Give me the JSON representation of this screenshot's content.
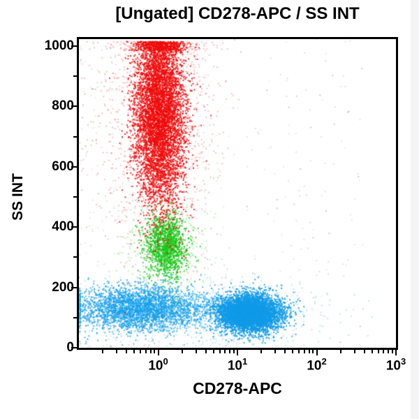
{
  "window": {
    "background": "#ffffff",
    "edge_strip_color": "#f4f4f6"
  },
  "chart_data": {
    "type": "scatter",
    "title": "[Ungated] CD278-APC / SS INT",
    "xlabel": "CD278-APC",
    "ylabel": "SS INT",
    "x_scale": "log",
    "x_decades_min": -1,
    "x_decades_max": 3,
    "x_tick_base": "10",
    "x_tick_exponents": [
      0,
      1,
      2,
      3
    ],
    "y_min": 0,
    "y_max": 1023,
    "y_ticks": [
      0,
      200,
      400,
      600,
      800,
      1000
    ],
    "y_minor_ticks": [
      100,
      300,
      500,
      700,
      900
    ],
    "axis_color": "#000000",
    "plot_background": "#ffffff",
    "grid": "off",
    "legend": "none",
    "populations": [
      {
        "name": "ungated-debris-sparse",
        "type": "sparse",
        "seed": 41,
        "n": 430,
        "alpha": 0.38,
        "x_pow": 1.6,
        "x_span": 3.6,
        "colors": [
          "#b9aca0",
          "#d4b6b6",
          "#a7b3bd",
          "#777777",
          "#d9c9a8"
        ]
      },
      {
        "name": "blue-population-halo",
        "type": "gauss",
        "seed": 31,
        "n": 900,
        "alpha": 0.28,
        "color": "#17a0ea",
        "x_log_mean": 0.55,
        "x_log_sd": 0.75,
        "y_mean": 122,
        "y_sd": 55
      },
      {
        "name": "blue-population-left-lobe",
        "type": "gauss",
        "seed": 32,
        "n": 3200,
        "alpha": 0.72,
        "color": "#17a0ea",
        "x_log_mean": -0.22,
        "x_log_sd": 0.42,
        "y_mean": 130,
        "y_sd": 37
      },
      {
        "name": "blue-population-dense-core",
        "type": "gauss",
        "seed": 33,
        "n": 5200,
        "alpha": 0.85,
        "color": "#119ae8",
        "x_log_mean": 1.15,
        "x_log_sd": 0.2,
        "y_mean": 115,
        "y_sd": 31
      },
      {
        "name": "green-population-halo",
        "type": "gauss",
        "seed": 21,
        "n": 430,
        "alpha": 0.28,
        "color": "#1ecc1e",
        "x_log_mean": 0.1,
        "x_log_sd": 0.27,
        "y_mean": 335,
        "y_sd": 80
      },
      {
        "name": "green-population-core",
        "type": "gauss",
        "seed": 22,
        "n": 1350,
        "alpha": 0.8,
        "color": "#18c818",
        "x_log_mean": 0.1,
        "x_log_sd": 0.13,
        "y_mean": 338,
        "y_sd": 51
      },
      {
        "name": "red-population-halo",
        "type": "gauss",
        "seed": 11,
        "n": 1600,
        "alpha": 0.26,
        "color": "#ee1010",
        "x_log_mean": 0.02,
        "x_log_sd": 0.33,
        "y_mean": 770,
        "y_sd": 215,
        "pile_top": true
      },
      {
        "name": "red-population-core",
        "type": "gauss",
        "seed": 12,
        "n": 5800,
        "alpha": 0.85,
        "color": "#ee0c0c",
        "x_log_mean": 0.02,
        "x_log_sd": 0.155,
        "y_mean": 780,
        "y_sd": 160,
        "pile_top": true
      }
    ]
  }
}
